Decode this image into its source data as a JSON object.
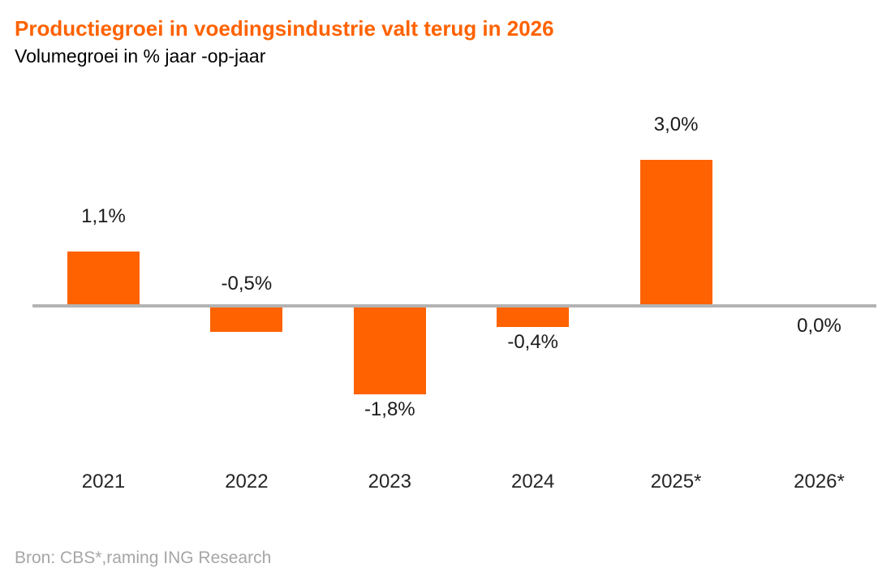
{
  "chart_data": {
    "type": "bar",
    "title": "Productiegroei in voedingsindustrie valt terug in 2026",
    "subtitle": "Volumegroei in % jaar -op-jaar",
    "source": "Bron: CBS*,raming ING Research",
    "categories": [
      "2021",
      "2022",
      "2023",
      "2024",
      "2025*",
      "2026*"
    ],
    "values": [
      1.1,
      -0.5,
      -1.8,
      -0.4,
      3.0,
      0.0
    ],
    "value_labels": [
      "1,1%",
      "-0,5%",
      "-1,8%",
      "-0,4%",
      "3,0%",
      "0,0%"
    ],
    "label_positions": [
      "above-bar",
      "above-axis",
      "below-bar",
      "below-bar",
      "above-bar",
      "below-axis"
    ],
    "unit": "% jaar-op-jaar",
    "ylim": [
      -2.5,
      3.5
    ],
    "grid": false,
    "legend": false,
    "bar_color": "#FF6200",
    "title_color": "#FF6200",
    "axis_line_color": "#B3B3B3",
    "text_color": "#1a1a1a",
    "source_color": "#A6A6A6",
    "background_color": "#FFFFFF"
  }
}
